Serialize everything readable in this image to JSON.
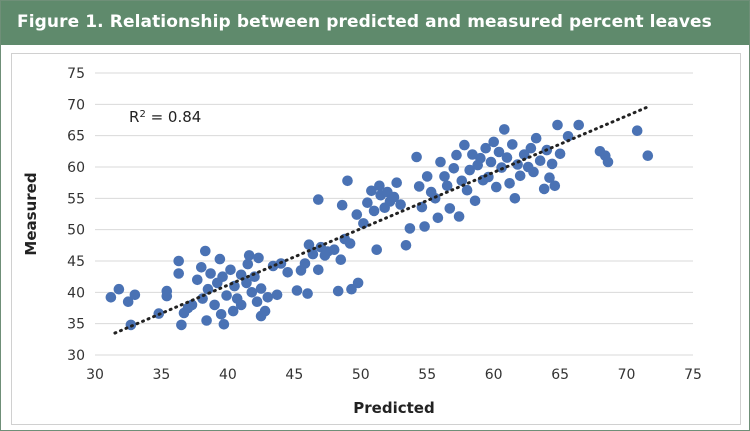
{
  "header": {
    "title": "Figure 1. Relationship between predicted and measured percent leaves"
  },
  "colors": {
    "header_bg": "#5f8a6c",
    "point": "#4a72b4",
    "trendline": "#222222",
    "grid": "#d9d9d9"
  },
  "annotation": {
    "r2_prefix": "R",
    "r2_sup": "2",
    "r2_value": " = 0.84"
  },
  "chart_data": {
    "type": "scatter",
    "title": "",
    "xlabel": "Predicted",
    "ylabel": "Measured",
    "xlim": [
      30,
      75
    ],
    "ylim": [
      30,
      75
    ],
    "xticks": [
      30,
      35,
      40,
      45,
      50,
      55,
      60,
      65,
      70,
      75
    ],
    "yticks": [
      30,
      35,
      40,
      45,
      50,
      55,
      60,
      65,
      70,
      75
    ],
    "grid": "horizontal",
    "trendline": {
      "style": "dotted",
      "x": [
        31.5,
        71.5
      ],
      "y": [
        33.5,
        69.5
      ]
    },
    "r_squared": 0.84,
    "series": [
      {
        "marker": "circle",
        "points": [
          [
            31.2,
            39.2
          ],
          [
            31.8,
            40.5
          ],
          [
            32.5,
            38.5
          ],
          [
            32.7,
            34.8
          ],
          [
            33.0,
            39.6
          ],
          [
            34.8,
            36.6
          ],
          [
            35.4,
            39.4
          ],
          [
            35.4,
            40.2
          ],
          [
            36.3,
            43.0
          ],
          [
            36.3,
            45.0
          ],
          [
            36.5,
            34.8
          ],
          [
            36.7,
            36.7
          ],
          [
            37.0,
            37.5
          ],
          [
            37.3,
            38.0
          ],
          [
            37.7,
            42.0
          ],
          [
            38.0,
            44.0
          ],
          [
            38.1,
            39.0
          ],
          [
            38.3,
            46.6
          ],
          [
            38.4,
            35.5
          ],
          [
            38.5,
            40.5
          ],
          [
            38.7,
            43.0
          ],
          [
            39.0,
            38.0
          ],
          [
            39.2,
            41.5
          ],
          [
            39.4,
            45.3
          ],
          [
            39.5,
            36.5
          ],
          [
            39.6,
            42.5
          ],
          [
            39.7,
            34.9
          ],
          [
            39.9,
            39.5
          ],
          [
            40.2,
            43.6
          ],
          [
            40.4,
            37.0
          ],
          [
            40.5,
            41.0
          ],
          [
            40.7,
            39.0
          ],
          [
            41.0,
            42.8
          ],
          [
            41.0,
            38.0
          ],
          [
            41.4,
            41.5
          ],
          [
            41.5,
            44.5
          ],
          [
            41.6,
            45.9
          ],
          [
            41.8,
            40.0
          ],
          [
            42.0,
            42.5
          ],
          [
            42.2,
            38.5
          ],
          [
            42.3,
            45.5
          ],
          [
            42.5,
            40.6
          ],
          [
            42.5,
            36.2
          ],
          [
            42.8,
            37.0
          ],
          [
            43.0,
            39.2
          ],
          [
            43.4,
            44.2
          ],
          [
            43.7,
            39.6
          ],
          [
            44.0,
            44.6
          ],
          [
            44.5,
            43.2
          ],
          [
            45.2,
            40.3
          ],
          [
            45.5,
            43.5
          ],
          [
            45.8,
            44.6
          ],
          [
            46.0,
            39.8
          ],
          [
            46.1,
            47.6
          ],
          [
            46.4,
            46.1
          ],
          [
            46.8,
            43.6
          ],
          [
            46.8,
            54.8
          ],
          [
            47.0,
            47.2
          ],
          [
            47.3,
            45.9
          ],
          [
            47.5,
            46.5
          ],
          [
            48.0,
            46.8
          ],
          [
            48.3,
            40.2
          ],
          [
            48.5,
            45.2
          ],
          [
            48.6,
            53.9
          ],
          [
            48.8,
            48.5
          ],
          [
            49.0,
            57.8
          ],
          [
            49.2,
            47.8
          ],
          [
            49.3,
            40.5
          ],
          [
            49.7,
            52.4
          ],
          [
            49.8,
            41.5
          ],
          [
            50.2,
            51.0
          ],
          [
            50.5,
            54.3
          ],
          [
            50.8,
            56.2
          ],
          [
            51.0,
            53.0
          ],
          [
            51.2,
            46.8
          ],
          [
            51.4,
            57.0
          ],
          [
            51.5,
            55.5
          ],
          [
            51.8,
            53.5
          ],
          [
            52.0,
            56.0
          ],
          [
            52.2,
            54.5
          ],
          [
            52.5,
            55.2
          ],
          [
            52.7,
            57.5
          ],
          [
            53.0,
            54.0
          ],
          [
            53.4,
            47.5
          ],
          [
            53.7,
            50.2
          ],
          [
            54.2,
            61.6
          ],
          [
            54.4,
            56.9
          ],
          [
            54.6,
            53.6
          ],
          [
            54.8,
            50.5
          ],
          [
            55.0,
            58.5
          ],
          [
            55.3,
            56.0
          ],
          [
            55.6,
            55.0
          ],
          [
            55.8,
            51.9
          ],
          [
            56.0,
            60.8
          ],
          [
            56.3,
            58.5
          ],
          [
            56.5,
            57.0
          ],
          [
            56.7,
            53.4
          ],
          [
            57.0,
            59.8
          ],
          [
            57.2,
            61.9
          ],
          [
            57.4,
            52.1
          ],
          [
            57.6,
            57.8
          ],
          [
            57.8,
            63.5
          ],
          [
            58.0,
            56.3
          ],
          [
            58.2,
            59.5
          ],
          [
            58.4,
            62.0
          ],
          [
            58.6,
            54.6
          ],
          [
            58.8,
            60.3
          ],
          [
            59.0,
            61.4
          ],
          [
            59.2,
            57.9
          ],
          [
            59.4,
            63.0
          ],
          [
            59.6,
            58.4
          ],
          [
            59.8,
            60.8
          ],
          [
            60.0,
            64.0
          ],
          [
            60.2,
            56.8
          ],
          [
            60.4,
            62.4
          ],
          [
            60.6,
            59.9
          ],
          [
            60.8,
            66.0
          ],
          [
            61.0,
            61.5
          ],
          [
            61.2,
            57.4
          ],
          [
            61.4,
            63.6
          ],
          [
            61.6,
            55.0
          ],
          [
            61.8,
            60.4
          ],
          [
            62.0,
            58.6
          ],
          [
            62.3,
            62.0
          ],
          [
            62.6,
            60.0
          ],
          [
            62.8,
            63.0
          ],
          [
            63.0,
            59.2
          ],
          [
            63.2,
            64.6
          ],
          [
            63.5,
            61.0
          ],
          [
            63.8,
            56.5
          ],
          [
            64.0,
            62.7
          ],
          [
            64.2,
            58.3
          ],
          [
            64.4,
            60.5
          ],
          [
            64.6,
            57.0
          ],
          [
            64.8,
            66.7
          ],
          [
            65.0,
            62.1
          ],
          [
            65.6,
            64.9
          ],
          [
            66.4,
            66.7
          ],
          [
            68.0,
            62.5
          ],
          [
            68.4,
            61.8
          ],
          [
            68.6,
            60.8
          ],
          [
            70.8,
            65.8
          ],
          [
            71.6,
            61.8
          ]
        ]
      }
    ]
  }
}
